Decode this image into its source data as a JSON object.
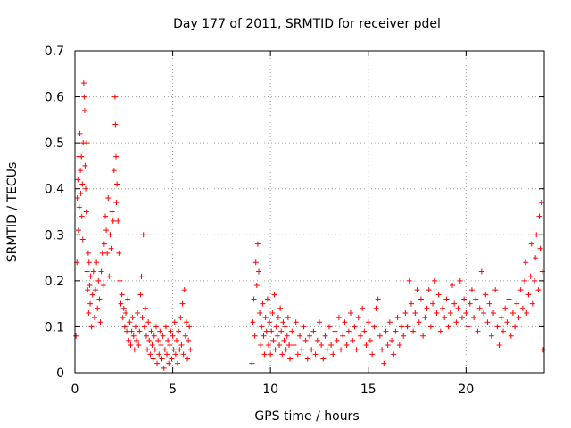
{
  "chart_data": {
    "type": "scatter",
    "title": "Day 177 of 2011, SRMTID for receiver pdel",
    "xlabel": "GPS time / hours",
    "ylabel": "SRMTID / TECUs",
    "xlim": [
      0,
      24
    ],
    "ylim": [
      0,
      0.7
    ],
    "x_ticks": [
      0,
      5,
      10,
      15,
      20
    ],
    "x_tick_labels": [
      "0",
      "5",
      "10",
      "15",
      "20"
    ],
    "y_ticks": [
      0,
      0.1,
      0.2,
      0.3,
      0.4,
      0.5,
      0.6,
      0.7
    ],
    "y_tick_labels": [
      "0",
      "0.1",
      "0.2",
      "0.3",
      "0.4",
      "0.5",
      "0.6",
      "0.7"
    ],
    "grid": true,
    "marker": "plus",
    "color": "#ff0000",
    "series": [
      {
        "name": "SRMTID",
        "points": [
          [
            0.05,
            0.08
          ],
          [
            0.1,
            0.24
          ],
          [
            0.12,
            0.38
          ],
          [
            0.15,
            0.42
          ],
          [
            0.18,
            0.31
          ],
          [
            0.2,
            0.47
          ],
          [
            0.22,
            0.36
          ],
          [
            0.25,
            0.52
          ],
          [
            0.28,
            0.44
          ],
          [
            0.3,
            0.39
          ],
          [
            0.33,
            0.47
          ],
          [
            0.35,
            0.34
          ],
          [
            0.38,
            0.41
          ],
          [
            0.4,
            0.29
          ],
          [
            0.42,
            0.5
          ],
          [
            0.45,
            0.63
          ],
          [
            0.47,
            0.6
          ],
          [
            0.5,
            0.57
          ],
          [
            0.52,
            0.45
          ],
          [
            0.55,
            0.4
          ],
          [
            0.58,
            0.35
          ],
          [
            0.6,
            0.5
          ],
          [
            0.62,
            0.22
          ],
          [
            0.65,
            0.18
          ],
          [
            0.68,
            0.26
          ],
          [
            0.7,
            0.13
          ],
          [
            0.72,
            0.24
          ],
          [
            0.75,
            0.19
          ],
          [
            0.78,
            0.15
          ],
          [
            0.8,
            0.21
          ],
          [
            0.85,
            0.1
          ],
          [
            0.9,
            0.17
          ],
          [
            0.95,
            0.22
          ],
          [
            1.0,
            0.12
          ],
          [
            1.05,
            0.18
          ],
          [
            1.1,
            0.24
          ],
          [
            1.15,
            0.14
          ],
          [
            1.2,
            0.2
          ],
          [
            1.25,
            0.16
          ],
          [
            1.3,
            0.11
          ],
          [
            1.35,
            0.22
          ],
          [
            1.4,
            0.26
          ],
          [
            1.45,
            0.19
          ],
          [
            1.5,
            0.28
          ],
          [
            1.55,
            0.34
          ],
          [
            1.6,
            0.31
          ],
          [
            1.65,
            0.26
          ],
          [
            1.7,
            0.38
          ],
          [
            1.75,
            0.21
          ],
          [
            1.8,
            0.3
          ],
          [
            1.85,
            0.27
          ],
          [
            1.9,
            0.35
          ],
          [
            1.95,
            0.33
          ],
          [
            2.0,
            0.44
          ],
          [
            2.05,
            0.6
          ],
          [
            2.07,
            0.54
          ],
          [
            2.1,
            0.47
          ],
          [
            2.12,
            0.37
          ],
          [
            2.15,
            0.41
          ],
          [
            2.2,
            0.33
          ],
          [
            2.25,
            0.26
          ],
          [
            2.3,
            0.2
          ],
          [
            2.35,
            0.15
          ],
          [
            2.4,
            0.17
          ],
          [
            2.45,
            0.12
          ],
          [
            2.5,
            0.14
          ],
          [
            2.55,
            0.1
          ],
          [
            2.6,
            0.13
          ],
          [
            2.65,
            0.09
          ],
          [
            2.7,
            0.16
          ],
          [
            2.75,
            0.07
          ],
          [
            2.8,
            0.11
          ],
          [
            2.85,
            0.06
          ],
          [
            2.9,
            0.09
          ],
          [
            2.95,
            0.12
          ],
          [
            3.0,
            0.08
          ],
          [
            3.05,
            0.05
          ],
          [
            3.1,
            0.1
          ],
          [
            3.15,
            0.07
          ],
          [
            3.2,
            0.13
          ],
          [
            3.25,
            0.06
          ],
          [
            3.3,
            0.09
          ],
          [
            3.35,
            0.17
          ],
          [
            3.4,
            0.21
          ],
          [
            3.45,
            0.12
          ],
          [
            3.5,
            0.3
          ],
          [
            3.55,
            0.1
          ],
          [
            3.6,
            0.14
          ],
          [
            3.65,
            0.08
          ],
          [
            3.7,
            0.05
          ],
          [
            3.75,
            0.11
          ],
          [
            3.8,
            0.07
          ],
          [
            3.85,
            0.04
          ],
          [
            3.9,
            0.09
          ],
          [
            3.95,
            0.06
          ],
          [
            4.0,
            0.03
          ],
          [
            4.05,
            0.08
          ],
          [
            4.1,
            0.05
          ],
          [
            4.15,
            0.1
          ],
          [
            4.2,
            0.02
          ],
          [
            4.25,
            0.07
          ],
          [
            4.3,
            0.04
          ],
          [
            4.35,
            0.09
          ],
          [
            4.4,
            0.06
          ],
          [
            4.45,
            0.03
          ],
          [
            4.5,
            0.08
          ],
          [
            4.55,
            0.01
          ],
          [
            4.6,
            0.05
          ],
          [
            4.65,
            0.1
          ],
          [
            4.7,
            0.04
          ],
          [
            4.75,
            0.07
          ],
          [
            4.8,
            0.02
          ],
          [
            4.85,
            0.06
          ],
          [
            4.9,
            0.09
          ],
          [
            4.95,
            0.03
          ],
          [
            5.0,
            0.08
          ],
          [
            5.05,
            0.05
          ],
          [
            5.1,
            0.11
          ],
          [
            5.15,
            0.04
          ],
          [
            5.2,
            0.07
          ],
          [
            5.25,
            0.02
          ],
          [
            5.3,
            0.09
          ],
          [
            5.35,
            0.05
          ],
          [
            5.4,
            0.12
          ],
          [
            5.45,
            0.06
          ],
          [
            5.5,
            0.15
          ],
          [
            5.55,
            0.04
          ],
          [
            5.6,
            0.18
          ],
          [
            5.65,
            0.08
          ],
          [
            5.7,
            0.11
          ],
          [
            5.75,
            0.03
          ],
          [
            5.8,
            0.07
          ],
          [
            5.85,
            0.1
          ],
          [
            5.9,
            0.05
          ],
          [
            9.05,
            0.02
          ],
          [
            9.1,
            0.11
          ],
          [
            9.15,
            0.16
          ],
          [
            9.2,
            0.08
          ],
          [
            9.25,
            0.24
          ],
          [
            9.3,
            0.19
          ],
          [
            9.35,
            0.28
          ],
          [
            9.4,
            0.22
          ],
          [
            9.45,
            0.13
          ],
          [
            9.5,
            0.06
          ],
          [
            9.55,
            0.1
          ],
          [
            9.6,
            0.15
          ],
          [
            9.65,
            0.08
          ],
          [
            9.7,
            0.04
          ],
          [
            9.75,
            0.12
          ],
          [
            9.8,
            0.09
          ],
          [
            9.85,
            0.16
          ],
          [
            9.9,
            0.06
          ],
          [
            9.95,
            0.11
          ],
          [
            10.0,
            0.04
          ],
          [
            10.05,
            0.09
          ],
          [
            10.1,
            0.13
          ],
          [
            10.15,
            0.07
          ],
          [
            10.2,
            0.17
          ],
          [
            10.25,
            0.05
          ],
          [
            10.3,
            0.1
          ],
          [
            10.35,
            0.08
          ],
          [
            10.4,
            0.12
          ],
          [
            10.45,
            0.06
          ],
          [
            10.5,
            0.14
          ],
          [
            10.55,
            0.09
          ],
          [
            10.6,
            0.04
          ],
          [
            10.65,
            0.11
          ],
          [
            10.7,
            0.07
          ],
          [
            10.75,
            0.1
          ],
          [
            10.8,
            0.05
          ],
          [
            10.85,
            0.08
          ],
          [
            10.9,
            0.12
          ],
          [
            10.95,
            0.06
          ],
          [
            11.0,
            0.03
          ],
          [
            11.1,
            0.09
          ],
          [
            11.2,
            0.06
          ],
          [
            11.3,
            0.11
          ],
          [
            11.4,
            0.04
          ],
          [
            11.5,
            0.08
          ],
          [
            11.6,
            0.05
          ],
          [
            11.7,
            0.1
          ],
          [
            11.8,
            0.07
          ],
          [
            11.9,
            0.03
          ],
          [
            12.0,
            0.08
          ],
          [
            12.1,
            0.05
          ],
          [
            12.2,
            0.09
          ],
          [
            12.3,
            0.04
          ],
          [
            12.4,
            0.07
          ],
          [
            12.5,
            0.11
          ],
          [
            12.6,
            0.06
          ],
          [
            12.7,
            0.03
          ],
          [
            12.8,
            0.08
          ],
          [
            12.9,
            0.05
          ],
          [
            13.0,
            0.1
          ],
          [
            13.1,
            0.06
          ],
          [
            13.2,
            0.04
          ],
          [
            13.3,
            0.09
          ],
          [
            13.4,
            0.07
          ],
          [
            13.5,
            0.12
          ],
          [
            13.6,
            0.05
          ],
          [
            13.7,
            0.08
          ],
          [
            13.8,
            0.11
          ],
          [
            13.9,
            0.06
          ],
          [
            14.0,
            0.09
          ],
          [
            14.1,
            0.13
          ],
          [
            14.2,
            0.07
          ],
          [
            14.3,
            0.1
          ],
          [
            14.4,
            0.05
          ],
          [
            14.5,
            0.12
          ],
          [
            14.6,
            0.08
          ],
          [
            14.7,
            0.14
          ],
          [
            14.8,
            0.09
          ],
          [
            14.9,
            0.06
          ],
          [
            15.0,
            0.11
          ],
          [
            15.1,
            0.07
          ],
          [
            15.2,
            0.04
          ],
          [
            15.3,
            0.1
          ],
          [
            15.4,
            0.14
          ],
          [
            15.5,
            0.16
          ],
          [
            15.6,
            0.08
          ],
          [
            15.7,
            0.05
          ],
          [
            15.8,
            0.02
          ],
          [
            15.9,
            0.09
          ],
          [
            16.0,
            0.06
          ],
          [
            16.1,
            0.11
          ],
          [
            16.2,
            0.07
          ],
          [
            16.3,
            0.04
          ],
          [
            16.4,
            0.09
          ],
          [
            16.5,
            0.12
          ],
          [
            16.6,
            0.06
          ],
          [
            16.7,
            0.1
          ],
          [
            16.8,
            0.08
          ],
          [
            16.9,
            0.13
          ],
          [
            17.0,
            0.1
          ],
          [
            17.1,
            0.2
          ],
          [
            17.2,
            0.15
          ],
          [
            17.3,
            0.09
          ],
          [
            17.4,
            0.13
          ],
          [
            17.5,
            0.18
          ],
          [
            17.6,
            0.11
          ],
          [
            17.7,
            0.16
          ],
          [
            17.8,
            0.08
          ],
          [
            17.9,
            0.12
          ],
          [
            18.0,
            0.14
          ],
          [
            18.1,
            0.18
          ],
          [
            18.2,
            0.1
          ],
          [
            18.3,
            0.15
          ],
          [
            18.4,
            0.2
          ],
          [
            18.5,
            0.13
          ],
          [
            18.6,
            0.17
          ],
          [
            18.7,
            0.09
          ],
          [
            18.8,
            0.14
          ],
          [
            18.9,
            0.12
          ],
          [
            19.0,
            0.16
          ],
          [
            19.1,
            0.1
          ],
          [
            19.2,
            0.13
          ],
          [
            19.3,
            0.19
          ],
          [
            19.4,
            0.15
          ],
          [
            19.5,
            0.11
          ],
          [
            19.6,
            0.14
          ],
          [
            19.7,
            0.2
          ],
          [
            19.8,
            0.12
          ],
          [
            19.9,
            0.16
          ],
          [
            20.0,
            0.13
          ],
          [
            20.1,
            0.1
          ],
          [
            20.2,
            0.15
          ],
          [
            20.3,
            0.18
          ],
          [
            20.4,
            0.12
          ],
          [
            20.5,
            0.16
          ],
          [
            20.6,
            0.09
          ],
          [
            20.7,
            0.14
          ],
          [
            20.8,
            0.22
          ],
          [
            20.9,
            0.13
          ],
          [
            21.0,
            0.17
          ],
          [
            21.1,
            0.11
          ],
          [
            21.2,
            0.15
          ],
          [
            21.3,
            0.08
          ],
          [
            21.4,
            0.13
          ],
          [
            21.5,
            0.18
          ],
          [
            21.6,
            0.1
          ],
          [
            21.7,
            0.06
          ],
          [
            21.8,
            0.12
          ],
          [
            21.9,
            0.09
          ],
          [
            22.0,
            0.14
          ],
          [
            22.1,
            0.11
          ],
          [
            22.2,
            0.16
          ],
          [
            22.3,
            0.08
          ],
          [
            22.4,
            0.13
          ],
          [
            22.5,
            0.1
          ],
          [
            22.6,
            0.15
          ],
          [
            22.7,
            0.12
          ],
          [
            22.8,
            0.18
          ],
          [
            22.9,
            0.14
          ],
          [
            23.0,
            0.2
          ],
          [
            23.05,
            0.24
          ],
          [
            23.1,
            0.13
          ],
          [
            23.2,
            0.17
          ],
          [
            23.3,
            0.21
          ],
          [
            23.35,
            0.28
          ],
          [
            23.4,
            0.15
          ],
          [
            23.5,
            0.2
          ],
          [
            23.55,
            0.25
          ],
          [
            23.6,
            0.3
          ],
          [
            23.7,
            0.18
          ],
          [
            23.75,
            0.34
          ],
          [
            23.8,
            0.27
          ],
          [
            23.85,
            0.37
          ],
          [
            23.9,
            0.22
          ],
          [
            23.95,
            0.05
          ]
        ]
      }
    ]
  }
}
